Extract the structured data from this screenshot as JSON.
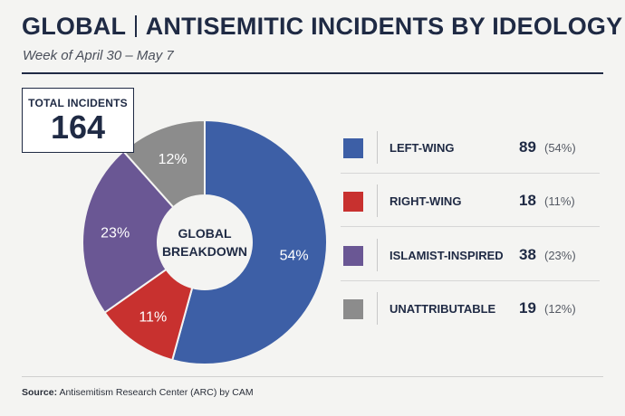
{
  "header": {
    "title_left": "GLOBAL",
    "title_right": "ANTISEMITIC INCIDENTS BY IDEOLOGY",
    "subtitle": "Week of April 30 – May 7"
  },
  "total": {
    "label": "TOTAL INCIDENTS",
    "value": "164"
  },
  "center_label": {
    "line1": "GLOBAL",
    "line2": "BREAKDOWN"
  },
  "chart_data": {
    "type": "pie",
    "title": "ANTISEMITIC INCIDENTS BY IDEOLOGY",
    "subtitle": "Week of April 30 – May 7",
    "legend_position": "right",
    "series": [
      {
        "name": "LEFT-WING",
        "value": 89,
        "percent_label": "54%",
        "legend_pct": "(54%)",
        "color": "#3d5fa6"
      },
      {
        "name": "RIGHT-WING",
        "value": 18,
        "percent_label": "11%",
        "legend_pct": "(11%)",
        "color": "#c8312f"
      },
      {
        "name": "ISLAMIST-INSPIRED",
        "value": 38,
        "percent_label": "23%",
        "legend_pct": "(23%)",
        "color": "#6a5794"
      },
      {
        "name": "UNATTRIBUTABLE",
        "value": 19,
        "percent_label": "12%",
        "legend_pct": "(12%)",
        "color": "#8c8c8c"
      }
    ]
  },
  "footer": {
    "source_label": "Source:",
    "source_text": "Antisemitism Research Center (ARC) by CAM"
  }
}
